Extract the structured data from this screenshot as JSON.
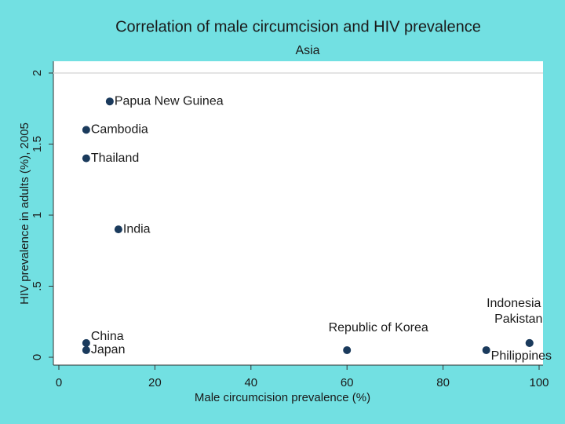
{
  "chart_data": {
    "type": "scatter",
    "title": "Correlation of male circumcision and HIV prevalence",
    "subtitle": "Asia",
    "x_label": "Male circumcision prevalence (%)",
    "y_label": "HIV prevalence in adults (%), 2005",
    "labels": [
      "Papua New Guinea",
      "Cambodia",
      "Thailand",
      "India",
      "China",
      "Japan",
      "Republic of Korea",
      "Indonesia",
      "Pakistan",
      "Philippines"
    ],
    "x": [
      10.6,
      5.7,
      5.7,
      12.4,
      5.7,
      5.7,
      60,
      98,
      98,
      89
    ],
    "values": [
      1.8,
      1.6,
      1.4,
      0.9,
      0.1,
      0.05,
      0.05,
      0.1,
      0.1,
      0.05
    ],
    "color": "#1a3a5c",
    "xlim": [
      0,
      100
    ],
    "xticks": [
      0,
      20,
      40,
      60,
      80,
      100
    ],
    "ylim": [
      0,
      2
    ],
    "yticks": [
      0,
      {
        "value": 0.5,
        "label": ".5"
      },
      1,
      1.5,
      2
    ],
    "grid": true
  }
}
